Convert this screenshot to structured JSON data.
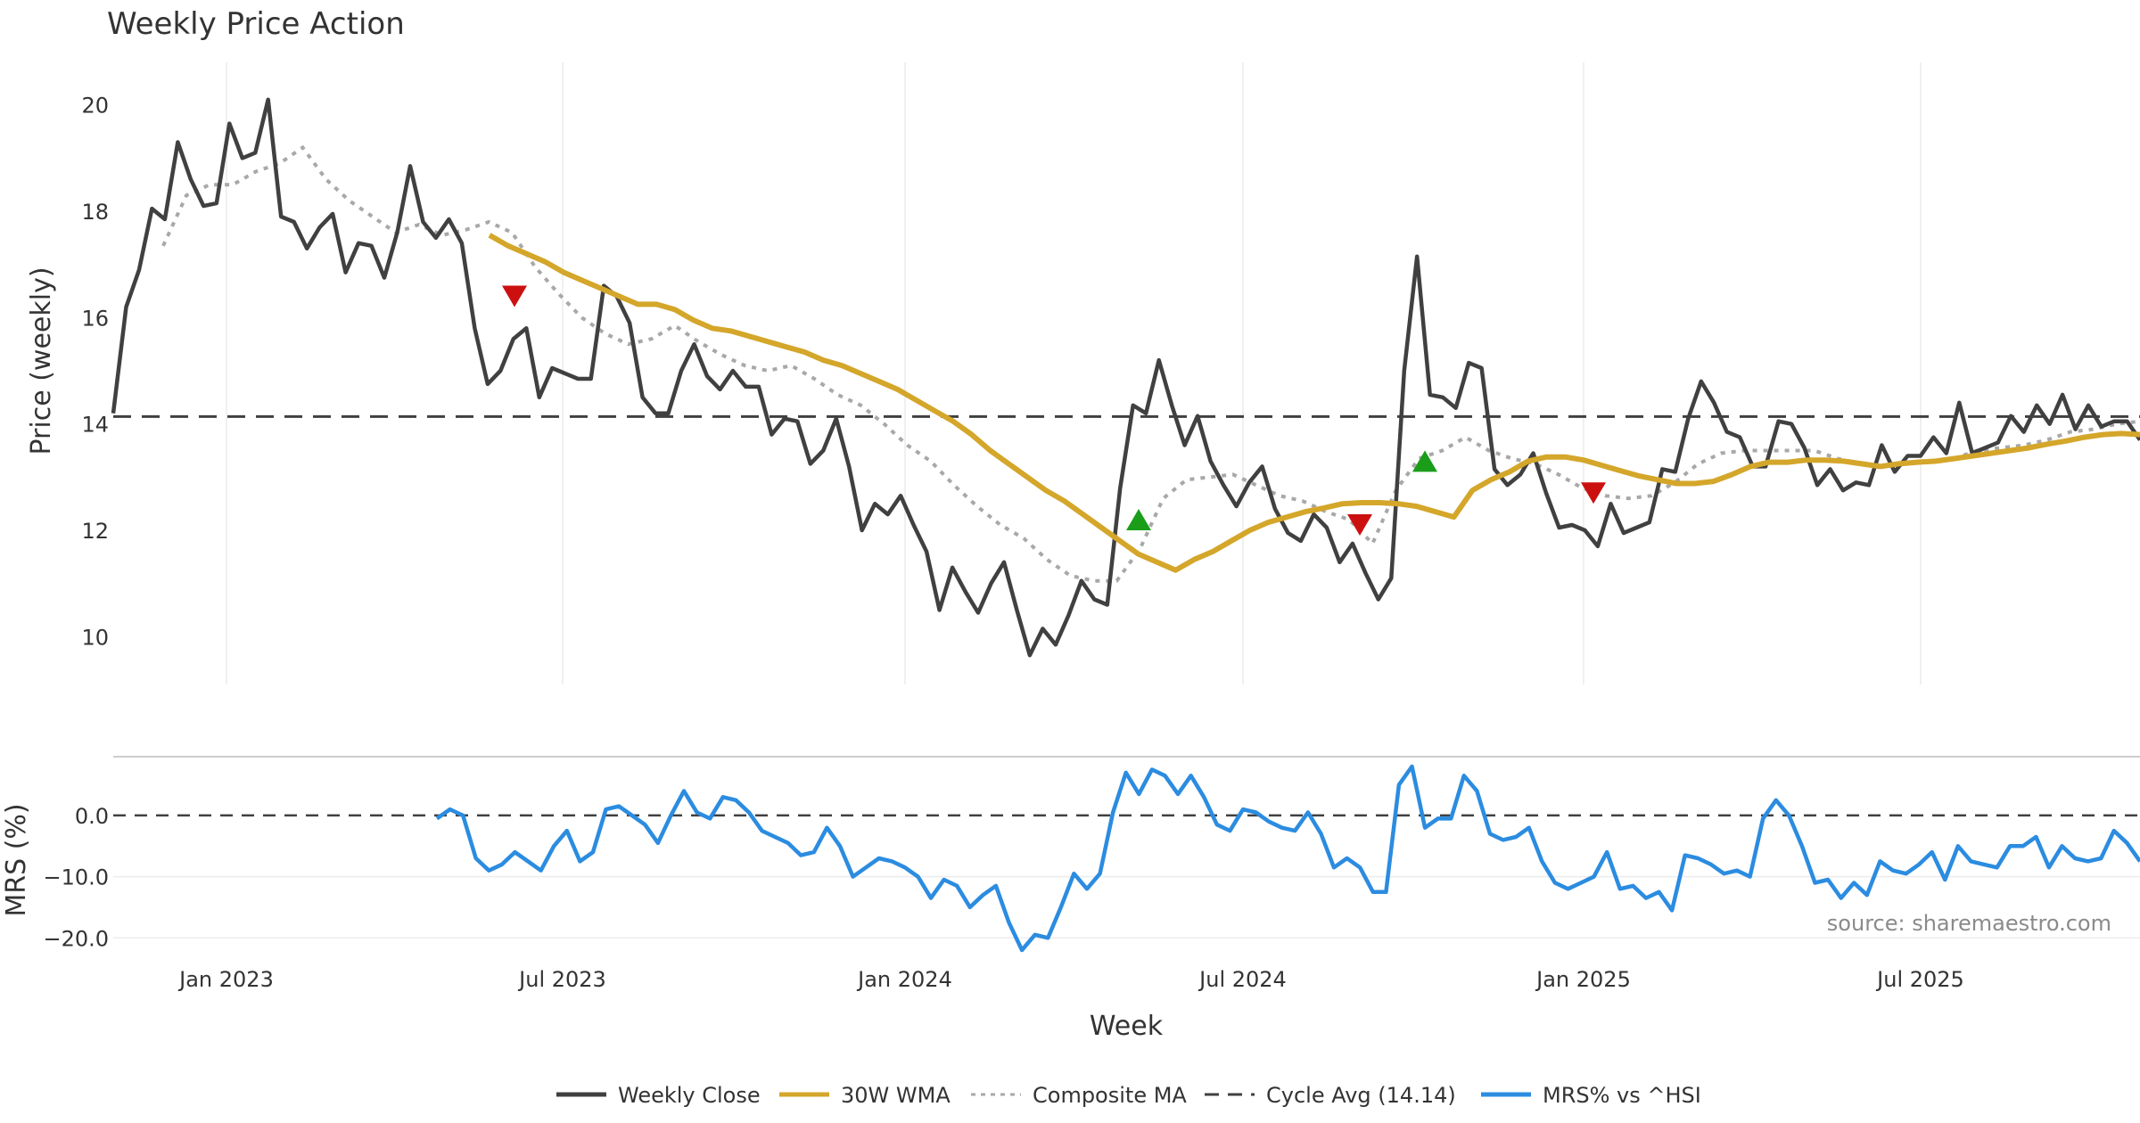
{
  "chart_data": {
    "type": "line",
    "title": "Weekly Price Action",
    "xlabel": "Week",
    "source": "source: sharemaestro.com",
    "x_ticks": [
      "Jan 2023",
      "Jul 2023",
      "Jan 2024",
      "Jul 2024",
      "Jan 2025",
      "Jul 2025"
    ],
    "price_panel": {
      "ylabel": "Price (weekly)",
      "ylim": [
        9.1,
        20.8
      ],
      "y_ticks": [
        "10",
        "12",
        "14",
        "16",
        "18",
        "20"
      ],
      "cycle_avg": 14.14,
      "weekly_close": [
        14.2,
        16.2,
        16.9,
        18.05,
        17.85,
        19.3,
        18.6,
        18.1,
        18.15,
        19.65,
        19.0,
        19.1,
        20.1,
        17.9,
        17.8,
        17.3,
        17.7,
        17.95,
        16.85,
        17.4,
        17.35,
        16.75,
        17.6,
        18.85,
        17.8,
        17.5,
        17.85,
        17.4,
        15.8,
        14.75,
        15.0,
        15.6,
        15.8,
        14.5,
        15.05,
        14.95,
        14.85,
        14.85,
        16.6,
        16.4,
        15.9,
        14.5,
        14.2,
        14.2,
        15.0,
        15.5,
        14.9,
        14.65,
        15.0,
        14.7,
        14.7,
        13.8,
        14.1,
        14.05,
        13.25,
        13.5,
        14.1,
        13.2,
        12.0,
        12.5,
        12.3,
        12.65,
        12.1,
        11.6,
        10.5,
        11.3,
        10.85,
        10.45,
        11.0,
        11.4,
        10.5,
        9.65,
        10.15,
        9.85,
        10.4,
        11.05,
        10.7,
        10.6,
        12.8,
        14.35,
        14.2,
        15.2,
        14.35,
        13.6,
        14.15,
        13.3,
        12.85,
        12.45,
        12.9,
        13.2,
        12.4,
        11.95,
        11.8,
        12.3,
        12.05,
        11.4,
        11.75,
        11.2,
        10.7,
        11.1,
        15.0,
        17.15,
        14.55,
        14.5,
        14.3,
        15.15,
        15.05,
        13.15,
        12.85,
        13.05,
        13.45,
        12.7,
        12.05,
        12.1,
        12.0,
        11.7,
        12.5,
        11.95,
        12.05,
        12.15,
        13.15,
        13.1,
        14.1,
        14.8,
        14.4,
        13.85,
        13.75,
        13.2,
        13.2,
        14.05,
        14.0,
        13.55,
        12.85,
        13.15,
        12.75,
        12.9,
        12.85,
        13.6,
        13.1,
        13.4,
        13.4,
        13.75,
        13.45,
        14.4,
        13.45,
        13.55,
        13.65,
        14.15,
        13.85,
        14.35,
        14.0,
        14.55,
        13.9,
        14.35,
        13.95,
        14.05,
        14.05,
        13.7
      ],
      "wma_30w": [
        17.55,
        17.35,
        17.2,
        17.05,
        16.85,
        16.7,
        16.55,
        16.4,
        16.25,
        16.25,
        16.15,
        15.95,
        15.8,
        15.75,
        15.65,
        15.55,
        15.45,
        15.35,
        15.2,
        15.1,
        14.95,
        14.8,
        14.65,
        14.45,
        14.25,
        14.05,
        13.8,
        13.5,
        13.25,
        13.0,
        12.75,
        12.55,
        12.3,
        12.05,
        11.8,
        11.55,
        11.4,
        11.25,
        11.45,
        11.6,
        11.8,
        12.0,
        12.15,
        12.25,
        12.35,
        12.42,
        12.5,
        12.52,
        12.52,
        12.5,
        12.45,
        12.35,
        12.25,
        12.75,
        12.95,
        13.1,
        13.3,
        13.38,
        13.38,
        13.32,
        13.22,
        13.12,
        13.02,
        12.95,
        12.88,
        12.88,
        12.92,
        13.05,
        13.2,
        13.28,
        13.28,
        13.32,
        13.32,
        13.3,
        13.25,
        13.2,
        13.25,
        13.28,
        13.3,
        13.35,
        13.4,
        13.45,
        13.5,
        13.55,
        13.62,
        13.68,
        13.75,
        13.8,
        13.82,
        13.8
      ]
    },
    "composite_ma": [
      17.35,
      18.3,
      18.5,
      18.5,
      18.75,
      18.9,
      19.2,
      18.6,
      18.2,
      17.9,
      17.6,
      17.75,
      17.55,
      17.65,
      17.8,
      17.6,
      16.95,
      16.45,
      16.0,
      15.7,
      15.5,
      15.6,
      15.85,
      15.55,
      15.3,
      15.1,
      15.0,
      15.1,
      14.85,
      14.55,
      14.35,
      14.0,
      13.6,
      13.3,
      12.85,
      12.45,
      12.1,
      11.85,
      11.45,
      11.15,
      11.05,
      11.05,
      11.65,
      12.6,
      12.95,
      13.0,
      13.05,
      12.85,
      12.65,
      12.55,
      12.35,
      12.2,
      11.75,
      12.75,
      13.35,
      13.5,
      13.75,
      13.5,
      13.35,
      13.25,
      13.05,
      12.8,
      12.65,
      12.6,
      12.65,
      12.9,
      13.25,
      13.45,
      13.5,
      13.5,
      13.5,
      13.5,
      13.35,
      13.25,
      13.2,
      13.25,
      13.3,
      13.35,
      13.5,
      13.55,
      13.6,
      13.7,
      13.85,
      13.9,
      14.0,
      14.05
    ],
    "signals": [
      {
        "type": "sell",
        "price": 16.4
      },
      {
        "type": "buy",
        "price": 12.2
      },
      {
        "type": "sell",
        "price": 12.1
      },
      {
        "type": "buy",
        "price": 13.3
      },
      {
        "type": "sell",
        "price": 12.7
      }
    ],
    "mrs_panel": {
      "ylabel": "MRS (%)",
      "ylim": [
        -22,
        8
      ],
      "y_ticks": [
        "0.0",
        "−10.0",
        "−20.0"
      ],
      "mrs_vs_hsi": [
        -0.5,
        1.0,
        0.0,
        -7.0,
        -9.0,
        -8.0,
        -6.0,
        -7.5,
        -9.0,
        -5.0,
        -2.5,
        -7.5,
        -6.0,
        1.0,
        1.5,
        0.0,
        -1.5,
        -4.5,
        0.0,
        4.0,
        0.5,
        -0.5,
        3.0,
        2.5,
        0.5,
        -2.5,
        -3.5,
        -4.5,
        -6.5,
        -6.0,
        -2.0,
        -5.0,
        -10.0,
        -8.5,
        -7.0,
        -7.5,
        -8.5,
        -10.0,
        -13.5,
        -10.5,
        -11.5,
        -15.0,
        -13.0,
        -11.5,
        -17.5,
        -22.0,
        -19.5,
        -20.0,
        -15.0,
        -9.5,
        -12.0,
        -9.5,
        0.5,
        7.0,
        3.5,
        7.5,
        6.5,
        3.5,
        6.5,
        3.0,
        -1.5,
        -2.5,
        1.0,
        0.5,
        -1.0,
        -2.0,
        -2.5,
        0.5,
        -3.0,
        -8.5,
        -7.0,
        -8.5,
        -12.5,
        -12.5,
        5.0,
        8.0,
        -2.0,
        -0.5,
        -0.5,
        6.5,
        4.0,
        -3.0,
        -4.0,
        -3.5,
        -2.0,
        -7.5,
        -11.0,
        -12.0,
        -11.0,
        -10.0,
        -6.0,
        -12.0,
        -11.5,
        -13.5,
        -12.5,
        -15.5,
        -6.5,
        -7.0,
        -8.0,
        -9.5,
        -9.0,
        -10.0,
        -0.5,
        2.5,
        0.0,
        -5.0,
        -11.0,
        -10.5,
        -13.5,
        -11.0,
        -13.0,
        -7.5,
        -9.0,
        -9.5,
        -8.0,
        -6.0,
        -10.5,
        -5.0,
        -7.5,
        -8.0,
        -8.5,
        -5.0,
        -5.0,
        -3.5,
        -8.5,
        -5.0,
        -7.0,
        -7.5,
        -7.0,
        -2.5,
        -4.5,
        -7.5
      ]
    },
    "legend": {
      "items": [
        {
          "label": "Weekly Close",
          "color": "#404040",
          "style": "solid"
        },
        {
          "label": "30W WMA",
          "color": "#d4a62a",
          "style": "solid"
        },
        {
          "label": "Composite MA",
          "color": "#a8a8a8",
          "style": "dotted"
        },
        {
          "label": "Cycle Avg (14.14)",
          "color": "#404040",
          "style": "dashed"
        },
        {
          "label": "MRS% vs ^HSI",
          "color": "#2b8ce0",
          "style": "solid"
        }
      ]
    }
  }
}
